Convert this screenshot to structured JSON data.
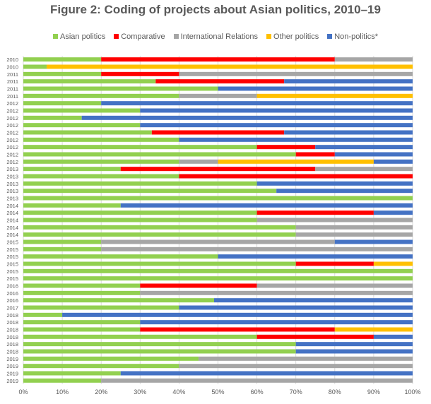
{
  "colors": {
    "asian_politics": "#92d050",
    "comparative": "#ff0000",
    "international_relations": "#a6a6a6",
    "other_politics": "#ffc000",
    "non_politics": "#4472c4",
    "gridline": "#d9d9d9",
    "text": "#595959"
  },
  "chart_data": {
    "type": "bar",
    "orientation": "horizontal",
    "stacked": "percent",
    "title": "Figure 2: Coding of projects about Asian politics, 2010–19",
    "xlim": [
      0,
      100
    ],
    "x_ticks": [
      "0%",
      "10%",
      "20%",
      "30%",
      "40%",
      "50%",
      "60%",
      "70%",
      "80%",
      "90%",
      "100%"
    ],
    "grid": "vertical",
    "legend_position": "top",
    "categories": [
      "2010",
      "2010",
      "2011",
      "2011",
      "2011",
      "2011",
      "2012",
      "2012",
      "2012",
      "2012",
      "2012",
      "2012",
      "2012",
      "2012",
      "2012",
      "2013",
      "2013",
      "2013",
      "2013",
      "2013",
      "2014",
      "2014",
      "2014",
      "2014",
      "2014",
      "2015",
      "2015",
      "2015",
      "2015",
      "2015",
      "2015",
      "2016",
      "2016",
      "2016",
      "2017",
      "2018",
      "2018",
      "2018",
      "2018",
      "2018",
      "2018",
      "2019",
      "2019",
      "2019",
      "2019"
    ],
    "series": [
      {
        "name": "Asian politics",
        "color_key": "asian_politics",
        "values": [
          20,
          6,
          20,
          34,
          50,
          40,
          20,
          30,
          15,
          30,
          33,
          40,
          60,
          70,
          40,
          25,
          40,
          60,
          65,
          100,
          25,
          60,
          60,
          70,
          70,
          20,
          20,
          50,
          70,
          100,
          100,
          30,
          30,
          49,
          40,
          10,
          30,
          30,
          60,
          70,
          70,
          45,
          40,
          25,
          20
        ]
      },
      {
        "name": "Comparative",
        "color_key": "comparative",
        "values": [
          60,
          0,
          20,
          33,
          0,
          0,
          0,
          0,
          0,
          0,
          34,
          0,
          15,
          10,
          0,
          50,
          60,
          0,
          0,
          0,
          0,
          30,
          0,
          0,
          0,
          0,
          0,
          0,
          20,
          0,
          0,
          30,
          0,
          0,
          0,
          0,
          0,
          50,
          30,
          0,
          0,
          0,
          0,
          0,
          0
        ]
      },
      {
        "name": "International Relations",
        "color_key": "international_relations",
        "values": [
          20,
          0,
          60,
          0,
          0,
          20,
          0,
          0,
          0,
          0,
          0,
          0,
          0,
          0,
          10,
          25,
          0,
          0,
          0,
          0,
          0,
          0,
          40,
          30,
          30,
          60,
          80,
          0,
          0,
          0,
          0,
          40,
          70,
          0,
          0,
          0,
          0,
          0,
          0,
          0,
          0,
          55,
          60,
          0,
          80
        ]
      },
      {
        "name": "Other politics",
        "color_key": "other_politics",
        "values": [
          0,
          94,
          0,
          0,
          0,
          40,
          0,
          0,
          0,
          0,
          0,
          0,
          0,
          0,
          40,
          0,
          0,
          0,
          0,
          0,
          0,
          0,
          0,
          0,
          0,
          0,
          0,
          0,
          10,
          0,
          0,
          0,
          0,
          0,
          0,
          0,
          0,
          20,
          0,
          0,
          0,
          0,
          0,
          0,
          0
        ]
      },
      {
        "name": "Non-politics*",
        "color_key": "non_politics",
        "values": [
          0,
          0,
          0,
          33,
          50,
          0,
          80,
          70,
          85,
          70,
          33,
          60,
          25,
          20,
          10,
          0,
          0,
          40,
          35,
          0,
          75,
          10,
          0,
          0,
          0,
          20,
          0,
          50,
          0,
          0,
          0,
          0,
          0,
          51,
          60,
          90,
          70,
          0,
          10,
          30,
          30,
          0,
          0,
          75,
          0
        ]
      }
    ]
  }
}
